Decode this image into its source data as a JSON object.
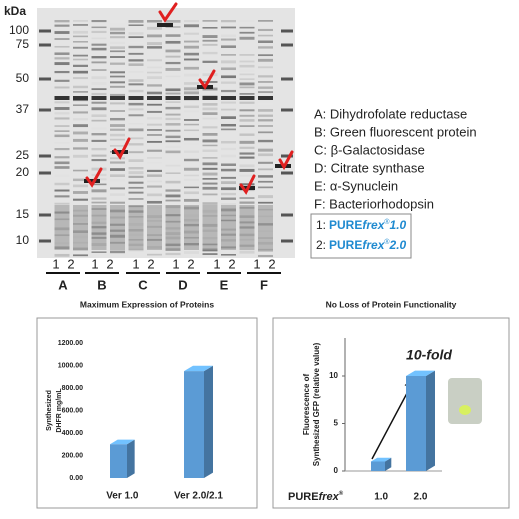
{
  "gel": {
    "unit": "kDa",
    "markers": [
      "100",
      "75",
      "50",
      "37",
      "25",
      "20",
      "15",
      "10"
    ],
    "lane_numbers": [
      "1",
      "2"
    ],
    "groups": [
      "A",
      "B",
      "C",
      "D",
      "E",
      "F"
    ],
    "legend": [
      "A: Dihydrofolate reductase",
      "B: Green fluorescent protein",
      "C: β-Galactosidase",
      "D: Citrate synthase",
      "E: α-Synuclein",
      "F: Bacteriorhodopsin"
    ],
    "versions": [
      {
        "prefix": "1:",
        "brand_a": "PURE",
        "brand_b": "frex",
        "brand_mark": "®",
        "version": "1.0"
      },
      {
        "prefix": "2:",
        "brand_a": "PURE",
        "brand_b": "frex",
        "brand_mark": "®",
        "version": "2.0"
      }
    ]
  },
  "chart_data": [
    {
      "type": "bar3d",
      "title": "Maximum Expression of Proteins",
      "ylabel": [
        "Synthesized",
        "DHFR mg/mL"
      ],
      "categories": [
        "Ver 1.0",
        "Ver 2.0/2.1"
      ],
      "values": [
        300,
        950
      ],
      "color": "#5b9bd5",
      "ylim": [
        0,
        1200
      ],
      "yticks": [
        {
          "value": 0,
          "label": "0.00"
        },
        {
          "value": 200,
          "label": "200.00"
        },
        {
          "value": 400,
          "label": "400.00"
        },
        {
          "value": 600,
          "label": "600.00"
        },
        {
          "value": 800,
          "label": "800.00"
        },
        {
          "value": 1000,
          "label": "1000.00"
        },
        {
          "value": 1200,
          "label": "1200.00"
        }
      ]
    },
    {
      "type": "bar3d",
      "title": "No Loss of Protein Functionality",
      "ylabel": [
        "Fluorescence of",
        "Synthesized GFP (relative value)"
      ],
      "categories": [
        "1.0",
        "2.0"
      ],
      "values": [
        1,
        10
      ],
      "color": "#5b9bd5",
      "ylim": [
        0,
        14
      ],
      "yticks": [
        0,
        5,
        10
      ],
      "annotation": "10-fold",
      "brand_a": "PURE",
      "brand_b": "frex",
      "brand_mark": "®"
    }
  ]
}
